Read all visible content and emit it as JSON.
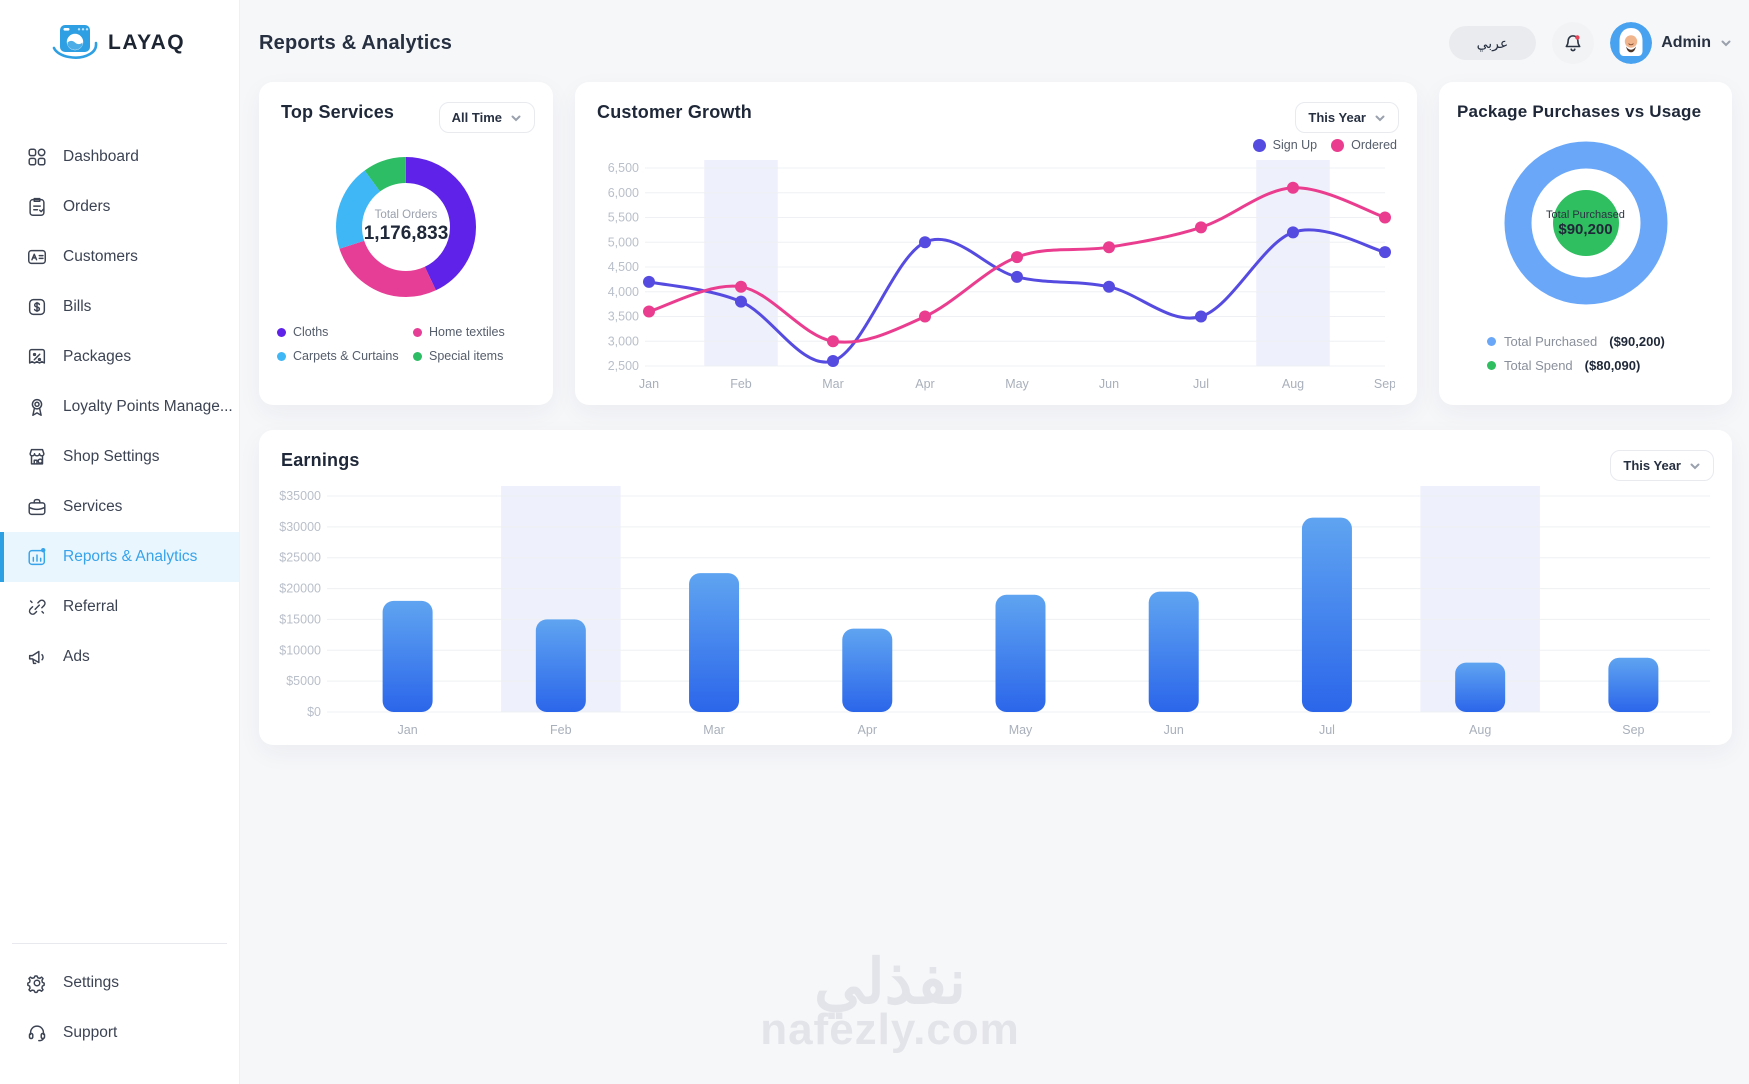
{
  "brand": {
    "name": "LAYAQ"
  },
  "sidebar": {
    "items": [
      {
        "id": "dashboard",
        "label": "Dashboard"
      },
      {
        "id": "orders",
        "label": "Orders"
      },
      {
        "id": "customers",
        "label": "Customers"
      },
      {
        "id": "bills",
        "label": "Bills"
      },
      {
        "id": "packages",
        "label": "Packages"
      },
      {
        "id": "loyalty",
        "label": "Loyalty Points Manage..."
      },
      {
        "id": "shop-settings",
        "label": "Shop Settings"
      },
      {
        "id": "services",
        "label": "Services"
      },
      {
        "id": "reports",
        "label": "Reports & Analytics"
      },
      {
        "id": "referral",
        "label": "Referral"
      },
      {
        "id": "ads",
        "label": "Ads"
      }
    ],
    "footer_items": [
      {
        "id": "settings",
        "label": "Settings"
      },
      {
        "id": "support",
        "label": "Support"
      }
    ]
  },
  "header": {
    "title": "Reports & Analytics",
    "language_button": "عربي",
    "user": {
      "name": "Admin"
    }
  },
  "filters": {
    "top_services": "All Time",
    "customer_growth": "This Year",
    "earnings": "This Year"
  },
  "watermark": {
    "arabic": "نفذلي",
    "domain": "nafezly.com"
  },
  "chart_data": [
    {
      "id": "top-services",
      "type": "pie",
      "donut": true,
      "title": "Top Services",
      "center": {
        "label": "Total Orders",
        "value": "1,176,833"
      },
      "slices": [
        {
          "label": "Cloths",
          "percent": 43,
          "color": "#5e22e8"
        },
        {
          "label": "Home textiles",
          "percent": 27,
          "color": "#e63d96"
        },
        {
          "label": "Carpets & Curtains",
          "percent": 20,
          "color": "#3fb7f6"
        },
        {
          "label": "Special items",
          "percent": 10,
          "color": "#2dbd64"
        }
      ]
    },
    {
      "id": "customer-growth",
      "type": "line",
      "title": "Customer Growth",
      "x": [
        "Jan",
        "Feb",
        "Mar",
        "Apr",
        "May",
        "Jun",
        "Jul",
        "Aug",
        "Sep"
      ],
      "series": [
        {
          "name": "Sign Up",
          "color": "#564be0",
          "values": [
            4200,
            3800,
            2600,
            5000,
            4300,
            4100,
            3500,
            5200,
            4800
          ]
        },
        {
          "name": "Ordered",
          "color": "#ea3d8f",
          "values": [
            3600,
            4100,
            3000,
            3500,
            4700,
            4900,
            5300,
            6100,
            5500
          ]
        }
      ],
      "ylim": [
        2500,
        6500
      ],
      "ytick_step": 500,
      "grid": "horizontal",
      "legend_position": "top-right",
      "highlighted_categories": [
        "Feb",
        "Aug"
      ]
    },
    {
      "id": "package-usage",
      "type": "pie",
      "donut": true,
      "title": "Package Purchases vs Usage",
      "center": {
        "label": "Total Purchased",
        "value": "$90,200"
      },
      "ring": {
        "label": "Total Purchased",
        "value": "($90,200)",
        "color": "#6aa7f8"
      },
      "inner": {
        "label": "Total Spend",
        "value": "($80,090)",
        "color": "#2fbe60"
      }
    },
    {
      "id": "earnings",
      "type": "bar",
      "title": "Earnings",
      "categories": [
        "Jan",
        "Feb",
        "Mar",
        "Apr",
        "May",
        "Jun",
        "Jul",
        "Aug",
        "Sep"
      ],
      "values": [
        18000,
        15000,
        22500,
        13500,
        19000,
        19500,
        31500,
        8000,
        8800
      ],
      "ylim": [
        0,
        35000
      ],
      "ytick_step": 5000,
      "ytick_prefix": "$",
      "grid": "horizontal",
      "bar_gradient": [
        "#5fa4f1",
        "#2b66ea"
      ],
      "highlighted_categories": [
        "Feb",
        "Aug"
      ]
    }
  ]
}
